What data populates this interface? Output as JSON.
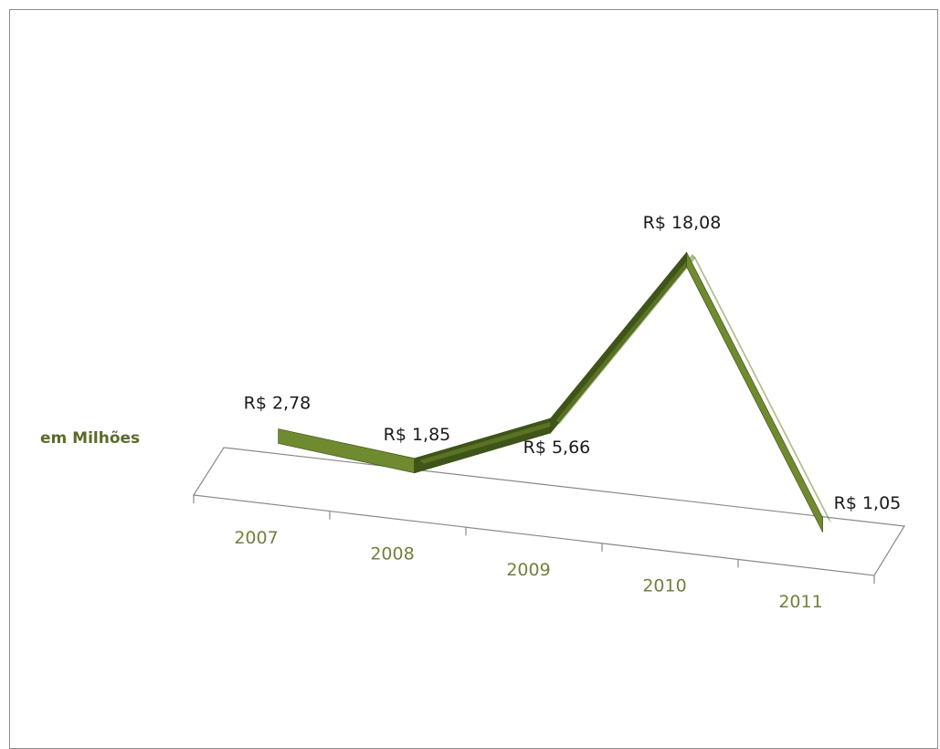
{
  "chart_data": {
    "type": "line",
    "title": "",
    "ylabel": "em Milhões",
    "xlabel": "",
    "categories": [
      "2007",
      "2008",
      "2009",
      "2010",
      "2011"
    ],
    "series": [
      {
        "values": [
          2.78,
          1.85,
          5.66,
          18.08,
          1.05
        ]
      }
    ],
    "data_labels": [
      "R$ 2,78",
      "R$ 1,85",
      "R$ 5,66",
      "R$ 18,08",
      "R$ 1,05"
    ],
    "ylim": [
      0,
      18.08
    ],
    "grid": false,
    "legend": "none",
    "style": "3d-ribbon"
  },
  "colors": {
    "ribbon_top": "#6f8a2f",
    "ribbon_side": "#3f5418",
    "floor_line": "#8a8a8a",
    "tick_text": "#76803d",
    "ylabel_text": "#5a6b2a"
  }
}
